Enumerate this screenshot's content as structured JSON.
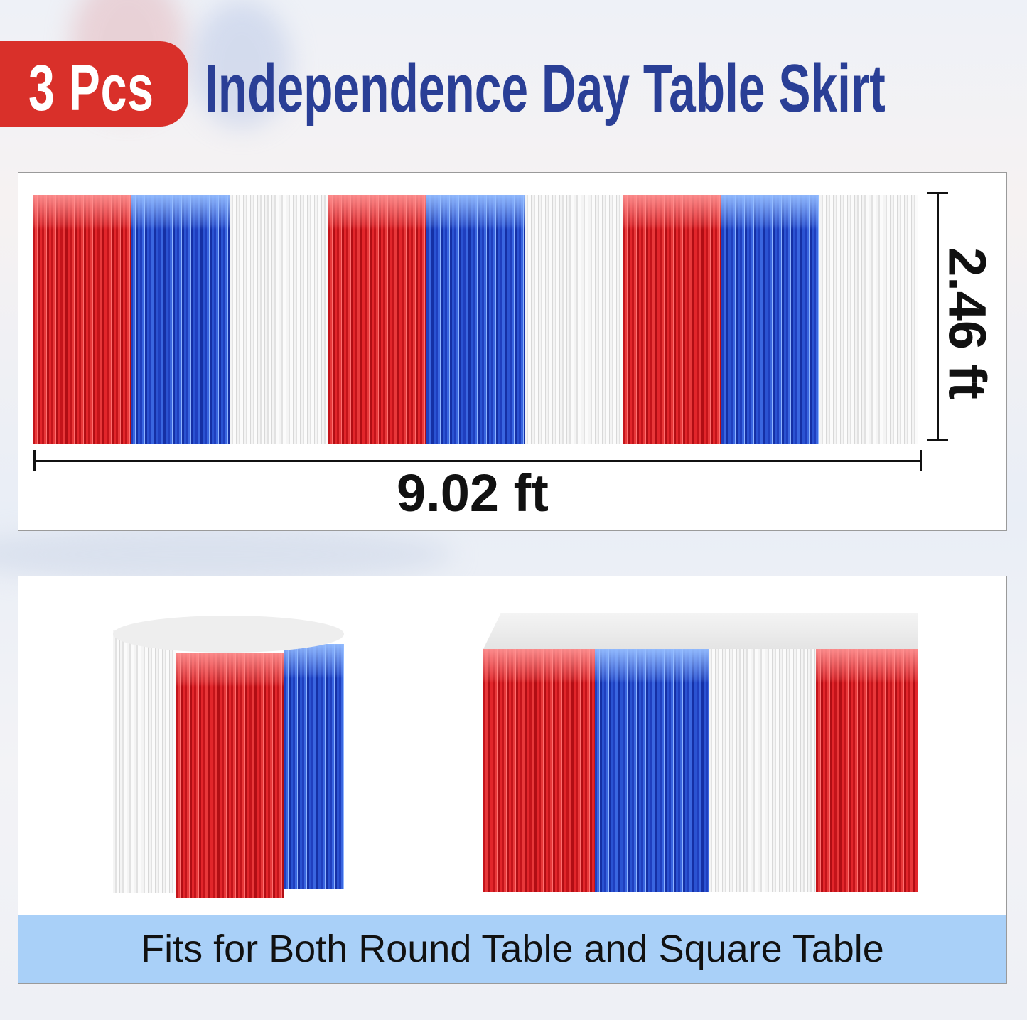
{
  "header": {
    "badge": "3 Pcs",
    "title": "Independence Day Table Skirt"
  },
  "dimensions": {
    "width": "9.02 ft",
    "height": "2.46 ft"
  },
  "caption": "Fits for Both Round Table and Square Table",
  "colors": {
    "badge": "#d9302a",
    "title": "#2a3f96",
    "caption_band": "#a9d0f8",
    "fringe": [
      "red",
      "blue",
      "white"
    ]
  }
}
